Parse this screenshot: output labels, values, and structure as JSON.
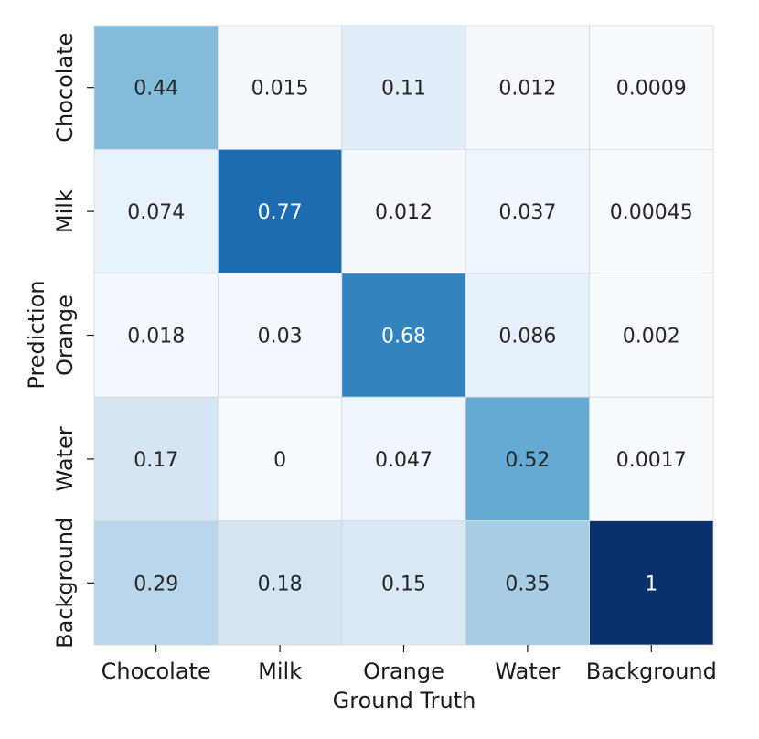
{
  "chart_data": {
    "type": "heatmap",
    "title": "",
    "xlabel": "Ground Truth",
    "ylabel": "Prediction",
    "x_categories": [
      "Chocolate",
      "Milk",
      "Orange",
      "Water",
      "Background"
    ],
    "y_categories": [
      "Chocolate",
      "Milk",
      "Orange",
      "Water",
      "Background"
    ],
    "values": [
      [
        0.44,
        0.015,
        0.11,
        0.012,
        0.0009
      ],
      [
        0.074,
        0.77,
        0.012,
        0.037,
        0.00045
      ],
      [
        0.018,
        0.03,
        0.68,
        0.086,
        0.002
      ],
      [
        0.17,
        0,
        0.047,
        0.52,
        0.0017
      ],
      [
        0.29,
        0.18,
        0.15,
        0.35,
        1
      ]
    ],
    "labels": [
      [
        "0.44",
        "0.015",
        "0.11",
        "0.012",
        "0.0009"
      ],
      [
        "0.074",
        "0.77",
        "0.012",
        "0.037",
        "0.00045"
      ],
      [
        "0.018",
        "0.03",
        "0.68",
        "0.086",
        "0.002"
      ],
      [
        "0.17",
        "0",
        "0.047",
        "0.52",
        "0.0017"
      ],
      [
        "0.29",
        "0.18",
        "0.15",
        "0.35",
        "1"
      ]
    ],
    "vmin": 0,
    "vmax": 1,
    "colormap": "Blues",
    "colorbar": false
  }
}
